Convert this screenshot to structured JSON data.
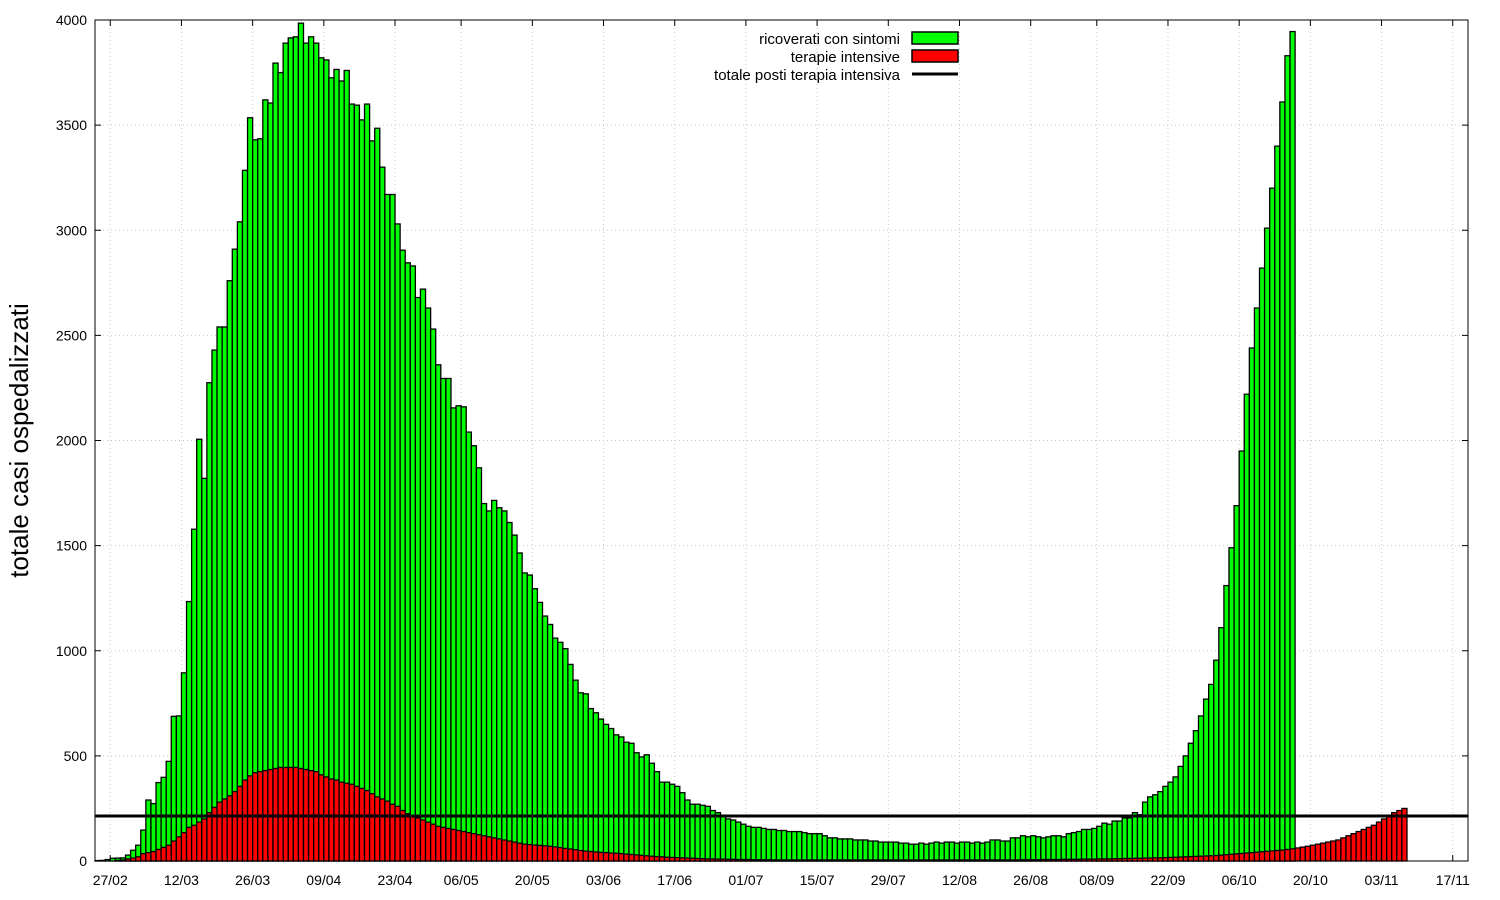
{
  "chart_data": {
    "type": "bar",
    "title": "",
    "xlabel": "",
    "ylabel": "totale casi ospedalizzati",
    "ylim": [
      0,
      4000
    ],
    "yticks": [
      "0",
      "500",
      "1000",
      "1500",
      "2000",
      "2500",
      "3000",
      "3500",
      "4000"
    ],
    "xtick_labels": [
      "27/02",
      "12/03",
      "26/03",
      "09/04",
      "23/04",
      "06/05",
      "20/05",
      "03/06",
      "17/06",
      "01/07",
      "15/07",
      "29/07",
      "12/08",
      "26/08",
      "08/09",
      "22/09",
      "06/10",
      "20/10",
      "03/11",
      "17/11"
    ],
    "x_start": "24/02",
    "x_end": "20/11",
    "grid": true,
    "legend_position": "top-center",
    "legend": [
      {
        "label": "ricoverati con sintomi",
        "color": "#00ff00"
      },
      {
        "label": "terapie intensive",
        "color": "#ff0000"
      },
      {
        "label": "totale posti terapia intensiva",
        "color": "#000000"
      }
    ],
    "icu_capacity": 214,
    "series": [
      {
        "name": "ricoverati con sintomi",
        "color": "#00ff00",
        "start_date": "24/02",
        "values": [
          2,
          3,
          7,
          13,
          14,
          15,
          28,
          51,
          75,
          147,
          290,
          273,
          373,
          398,
          474,
          688,
          690,
          895,
          1234,
          1578,
          2006,
          1820,
          2275,
          2430,
          2540,
          2540,
          2760,
          2910,
          3040,
          3285,
          3535,
          3430,
          3435,
          3620,
          3605,
          3795,
          3750,
          3890,
          3915,
          3920,
          3985,
          3890,
          3920,
          3890,
          3820,
          3810,
          3725,
          3765,
          3710,
          3760,
          3600,
          3595,
          3525,
          3600,
          3425,
          3485,
          3300,
          3170,
          3170,
          3030,
          2905,
          2845,
          2830,
          2680,
          2720,
          2630,
          2530,
          2360,
          2295,
          2295,
          2155,
          2165,
          2160,
          2040,
          1975,
          1870,
          1700,
          1665,
          1715,
          1680,
          1665,
          1610,
          1550,
          1465,
          1370,
          1360,
          1295,
          1230,
          1165,
          1125,
          1060,
          1040,
          1010,
          935,
          860,
          800,
          795,
          725,
          705,
          675,
          650,
          630,
          600,
          590,
          565,
          560,
          515,
          495,
          505,
          465,
          425,
          375,
          375,
          365,
          355,
          325,
          290,
          270,
          270,
          265,
          260,
          240,
          230,
          210,
          200,
          195,
          185,
          175,
          165,
          160,
          160,
          155,
          150,
          150,
          145,
          145,
          140,
          140,
          140,
          135,
          130,
          130,
          130,
          120,
          110,
          110,
          105,
          105,
          105,
          100,
          100,
          100,
          95,
          95,
          90,
          90,
          90,
          90,
          85,
          85,
          80,
          80,
          85,
          80,
          85,
          90,
          85,
          90,
          90,
          85,
          90,
          90,
          85,
          90,
          85,
          90,
          100,
          100,
          95,
          95,
          110,
          110,
          120,
          115,
          120,
          115,
          110,
          115,
          120,
          120,
          115,
          130,
          135,
          140,
          150,
          150,
          155,
          165,
          180,
          175,
          190,
          190,
          205,
          205,
          230,
          220,
          280,
          305,
          315,
          330,
          355,
          375,
          400,
          450,
          500,
          560,
          620,
          690,
          770,
          840,
          955,
          1110,
          1310,
          1490,
          1690,
          1950,
          2220,
          2440,
          2630,
          2820,
          3010,
          3200,
          3400,
          3610,
          3830,
          3945
        ]
      },
      {
        "name": "terapie intensive",
        "color": "#ff0000",
        "start_date": "24/02",
        "values": [
          0,
          0,
          0,
          0,
          3,
          5,
          10,
          14,
          20,
          35,
          40,
          45,
          55,
          65,
          75,
          95,
          115,
          135,
          160,
          170,
          185,
          200,
          230,
          255,
          280,
          295,
          310,
          330,
          355,
          385,
          405,
          420,
          425,
          430,
          435,
          440,
          445,
          445,
          445,
          445,
          440,
          435,
          430,
          425,
          410,
          400,
          390,
          385,
          375,
          370,
          365,
          355,
          345,
          335,
          320,
          305,
          295,
          285,
          270,
          260,
          240,
          225,
          215,
          205,
          195,
          185,
          175,
          165,
          160,
          155,
          150,
          145,
          140,
          135,
          130,
          125,
          120,
          115,
          110,
          105,
          100,
          95,
          90,
          85,
          80,
          78,
          76,
          74,
          72,
          70,
          67,
          64,
          60,
          57,
          54,
          50,
          47,
          45,
          43,
          41,
          40,
          38,
          37,
          35,
          33,
          31,
          29,
          27,
          25,
          23,
          21,
          20,
          18,
          17,
          16,
          15,
          14,
          13,
          12,
          11,
          10,
          10,
          9,
          9,
          8,
          8,
          7,
          7,
          7,
          6,
          6,
          6,
          6,
          5,
          5,
          5,
          5,
          5,
          5,
          5,
          5,
          5,
          5,
          5,
          5,
          5,
          5,
          5,
          5,
          5,
          5,
          5,
          5,
          5,
          5,
          5,
          5,
          5,
          5,
          5,
          5,
          5,
          5,
          5,
          5,
          5,
          5,
          5,
          5,
          5,
          5,
          5,
          5,
          5,
          5,
          5,
          5,
          5,
          5,
          5,
          5,
          5,
          6,
          6,
          6,
          6,
          7,
          7,
          7,
          7,
          8,
          8,
          8,
          8,
          9,
          9,
          9,
          10,
          10,
          10,
          11,
          11,
          12,
          12,
          13,
          13,
          14,
          14,
          15,
          15,
          16,
          17,
          18,
          19,
          20,
          21,
          22,
          23,
          24,
          25,
          26,
          28,
          30,
          32,
          34,
          36,
          38,
          40,
          42,
          44,
          46,
          48,
          50,
          52,
          55,
          58,
          62,
          66,
          70,
          75,
          80,
          85,
          90,
          95,
          100,
          110,
          120,
          130,
          140,
          150,
          160,
          170,
          185,
          200,
          215,
          230,
          240,
          250
        ]
      }
    ]
  }
}
